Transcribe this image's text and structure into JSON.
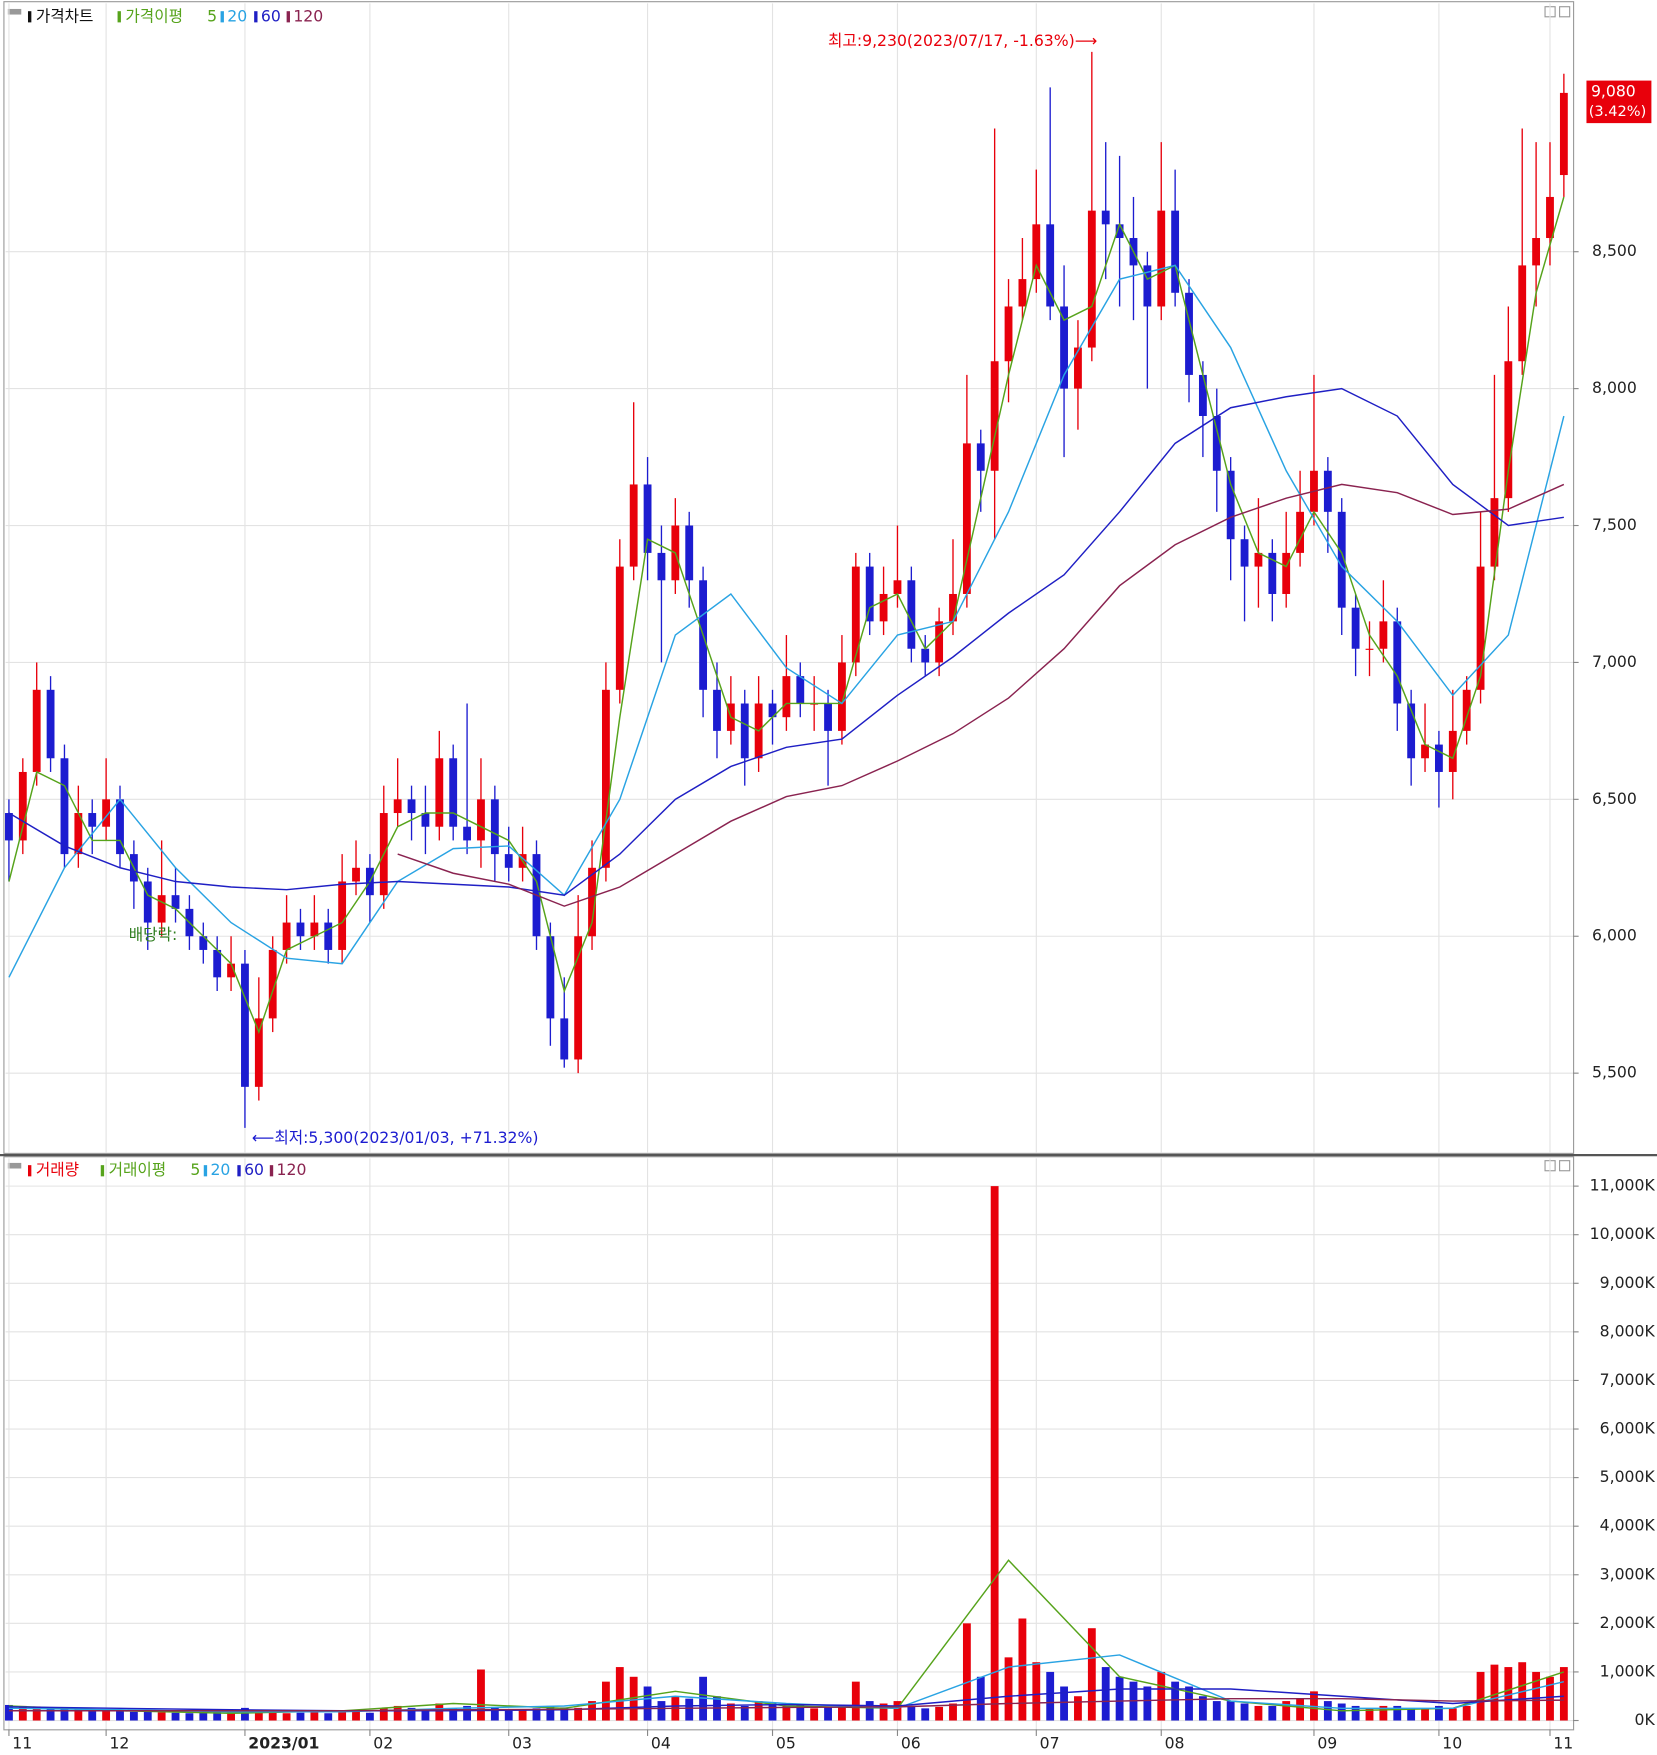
{
  "chart_data": [
    {
      "type": "candlestick",
      "title": "가격차트",
      "ma_title": "가격이평",
      "up_color": "#e8000b",
      "down_color": "#1c1cd0",
      "open": [
        6450,
        6350,
        6600,
        6900,
        6650,
        6300,
        6450,
        6400,
        6500,
        6300,
        6200,
        6050,
        6150,
        6100,
        6000,
        5950,
        5850,
        5900,
        5450,
        5700,
        5950,
        6050,
        6000,
        6050,
        5950,
        6200,
        6250,
        6150,
        6450,
        6500,
        6450,
        6400,
        6650,
        6400,
        6350,
        6500,
        6300,
        6250,
        6300,
        6000,
        5700,
        5550,
        6000,
        6250,
        6900,
        7350,
        7650,
        7400,
        7300,
        7500,
        7300,
        6900,
        6750,
        6850,
        6650,
        6850,
        6800,
        6950,
        6850,
        6850,
        6750,
        7000,
        7350,
        7150,
        7250,
        7300,
        7050,
        7000,
        7150,
        7250,
        7800,
        7700,
        8100,
        8300,
        8400,
        8600,
        8300,
        8000,
        8150,
        8650,
        8600,
        8550,
        8450,
        8300,
        8650,
        8350,
        8050,
        7900,
        7700,
        7450,
        7350,
        7400,
        7250,
        7400,
        7550,
        7700,
        7550,
        7200,
        7050,
        7050,
        7150,
        6850,
        6650,
        6700,
        6600,
        6750,
        6900,
        7350,
        7600,
        8100,
        8450,
        8550,
        8780
      ],
      "high": [
        6500,
        6650,
        7000,
        6950,
        6700,
        6550,
        6500,
        6650,
        6550,
        6350,
        6250,
        6350,
        6250,
        6150,
        6050,
        6000,
        6000,
        5950,
        5850,
        6000,
        6150,
        6100,
        6150,
        6100,
        6300,
        6350,
        6300,
        6550,
        6650,
        6550,
        6550,
        6750,
        6700,
        6850,
        6650,
        6550,
        6400,
        6400,
        6350,
        6050,
        5850,
        6150,
        6350,
        7000,
        7450,
        7950,
        7750,
        7500,
        7600,
        7550,
        7350,
        7000,
        6950,
        6900,
        6950,
        6900,
        7100,
        7000,
        6950,
        6900,
        7100,
        7400,
        7400,
        7350,
        7500,
        7350,
        7100,
        7200,
        7450,
        8050,
        7850,
        8950,
        8400,
        8550,
        8800,
        9100,
        8450,
        8250,
        9230,
        8900,
        8850,
        8700,
        8500,
        8900,
        8800,
        8400,
        8100,
        8000,
        7750,
        7500,
        7600,
        7450,
        7550,
        7700,
        8050,
        7750,
        7600,
        7250,
        7150,
        7300,
        7200,
        6900,
        6850,
        6750,
        6900,
        6950,
        7550,
        8050,
        8300,
        8950,
        8900,
        8900,
        9150
      ],
      "low": [
        6200,
        6300,
        6550,
        6600,
        6250,
        6250,
        6300,
        6350,
        6250,
        6100,
        5950,
        6000,
        6050,
        5950,
        5900,
        5800,
        5800,
        5300,
        5400,
        5650,
        5900,
        5950,
        5950,
        5900,
        5900,
        6150,
        6050,
        6100,
        6400,
        6350,
        6300,
        6350,
        6350,
        6300,
        6250,
        6200,
        6200,
        6200,
        5950,
        5600,
        5520,
        5500,
        5950,
        6200,
        6850,
        7300,
        7300,
        7000,
        7250,
        7200,
        6800,
        6650,
        6700,
        6550,
        6600,
        6700,
        6750,
        6800,
        6750,
        6550,
        6700,
        6950,
        7100,
        7100,
        7200,
        7000,
        6950,
        6950,
        7100,
        7200,
        7550,
        7450,
        7950,
        8250,
        8350,
        8250,
        7750,
        7850,
        8100,
        8400,
        8300,
        8250,
        8000,
        8250,
        8300,
        7950,
        7750,
        7550,
        7300,
        7150,
        7200,
        7150,
        7200,
        7350,
        7500,
        7400,
        7100,
        6950,
        6950,
        7000,
        6750,
        6550,
        6600,
        6470,
        6500,
        6700,
        6850,
        7300,
        7550,
        8050,
        8300,
        8450,
        8700
      ],
      "close": [
        6350,
        6600,
        6900,
        6650,
        6300,
        6450,
        6400,
        6500,
        6300,
        6200,
        6050,
        6150,
        6100,
        6000,
        5950,
        5850,
        5900,
        5450,
        5700,
        5950,
        6050,
        6000,
        6050,
        5950,
        6200,
        6250,
        6150,
        6450,
        6500,
        6450,
        6400,
        6650,
        6400,
        6350,
        6500,
        6300,
        6250,
        6300,
        6000,
        5700,
        5550,
        6000,
        6250,
        6900,
        7350,
        7650,
        7400,
        7300,
        7500,
        7300,
        6900,
        6750,
        6850,
        6650,
        6850,
        6800,
        6950,
        6850,
        6850,
        6750,
        7000,
        7350,
        7150,
        7250,
        7300,
        7050,
        7000,
        7150,
        7250,
        7800,
        7700,
        8100,
        8300,
        8400,
        8600,
        8300,
        8000,
        8150,
        8650,
        8600,
        8550,
        8450,
        8300,
        8650,
        8350,
        8050,
        7900,
        7700,
        7450,
        7350,
        7400,
        7250,
        7400,
        7550,
        7700,
        7550,
        7200,
        7050,
        7050,
        7150,
        6850,
        6650,
        6700,
        6600,
        6750,
        6900,
        7350,
        7600,
        8100,
        8450,
        8550,
        8700,
        9080
      ],
      "moving_averages": [
        {
          "name": "5",
          "color": "#56a31b",
          "x": [
            0,
            2,
            4,
            6,
            8,
            10,
            12,
            14,
            16,
            18,
            20,
            22,
            24,
            26,
            28,
            30,
            32,
            34,
            36,
            38,
            40,
            42,
            44,
            46,
            48,
            50,
            52,
            54,
            56,
            58,
            60,
            62,
            64,
            66,
            68,
            70,
            72,
            74,
            76,
            78,
            80,
            82,
            84,
            86,
            88,
            90,
            92,
            94,
            96,
            98,
            100,
            102,
            104,
            106,
            108,
            110,
            112
          ],
          "values": [
            6200,
            6600,
            6550,
            6350,
            6350,
            6150,
            6100,
            6000,
            5900,
            5650,
            5950,
            6000,
            6050,
            6200,
            6400,
            6450,
            6450,
            6400,
            6350,
            6200,
            5800,
            6050,
            6800,
            7450,
            7400,
            7100,
            6800,
            6750,
            6850,
            6850,
            6850,
            7200,
            7250,
            7050,
            7150,
            7600,
            8050,
            8450,
            8250,
            8300,
            8600,
            8400,
            8450,
            8050,
            7650,
            7400,
            7350,
            7550,
            7400,
            7100,
            6950,
            6700,
            6650,
            6950,
            7700,
            8350,
            8700
          ]
        },
        {
          "name": "20",
          "color": "#29a3e3",
          "x": [
            0,
            4,
            8,
            12,
            16,
            20,
            24,
            28,
            32,
            36,
            40,
            44,
            48,
            52,
            56,
            60,
            64,
            68,
            72,
            76,
            80,
            84,
            88,
            92,
            96,
            100,
            104,
            108,
            112
          ],
          "values": [
            5850,
            6250,
            6500,
            6250,
            6050,
            5920,
            5900,
            6200,
            6320,
            6330,
            6150,
            6500,
            7100,
            7250,
            6980,
            6850,
            7100,
            7150,
            7550,
            8050,
            8400,
            8450,
            8150,
            7700,
            7350,
            7150,
            6880,
            7100,
            7900
          ]
        },
        {
          "name": "60",
          "color": "#1f1fc4",
          "x": [
            0,
            4,
            8,
            12,
            16,
            20,
            24,
            28,
            32,
            36,
            40,
            44,
            48,
            52,
            56,
            60,
            64,
            68,
            72,
            76,
            80,
            84,
            88,
            92,
            96,
            100,
            104,
            108,
            112
          ],
          "values": [
            6450,
            6330,
            6250,
            6200,
            6180,
            6170,
            6190,
            6200,
            6190,
            6180,
            6150,
            6300,
            6500,
            6620,
            6690,
            6720,
            6880,
            7020,
            7180,
            7320,
            7550,
            7800,
            7930,
            7970,
            8000,
            7900,
            7650,
            7500,
            7530
          ]
        },
        {
          "name": "120",
          "color": "#8a2350",
          "x": [
            28,
            32,
            36,
            40,
            44,
            48,
            52,
            56,
            60,
            64,
            68,
            72,
            76,
            80,
            84,
            88,
            92,
            96,
            100,
            104,
            108,
            112
          ],
          "values": [
            6300,
            6230,
            6190,
            6110,
            6180,
            6300,
            6420,
            6510,
            6550,
            6640,
            6740,
            6870,
            7050,
            7280,
            7430,
            7530,
            7600,
            7650,
            7620,
            7540,
            7560,
            7650
          ]
        }
      ],
      "ylim": [
        5209,
        9407
      ],
      "yticks": [
        {
          "value": 5500,
          "label": "5,500"
        },
        {
          "value": 6000,
          "label": "6,000"
        },
        {
          "value": 6500,
          "label": "6,500"
        },
        {
          "value": 7000,
          "label": "7,000"
        },
        {
          "value": 7500,
          "label": "7,500"
        },
        {
          "value": 8000,
          "label": "8,000"
        },
        {
          "value": 8500,
          "label": "8,500"
        }
      ],
      "grid": true,
      "high_annotation": "최고:9,230(2023/07/17, -1.63%)⟶",
      "low_annotation": "⟵최저:5,300(2023/01/03, +71.32%)",
      "event_annotation": "배당락:",
      "last_label": "9,080",
      "last_change": "(3.42%)"
    },
    {
      "type": "bar",
      "title": "거래량",
      "ma_title": "거래이평",
      "values": [
        320,
        300,
        290,
        260,
        240,
        250,
        230,
        220,
        200,
        180,
        190,
        170,
        160,
        150,
        170,
        200,
        180,
        260,
        220,
        190,
        150,
        160,
        170,
        150,
        180,
        200,
        160,
        250,
        300,
        260,
        220,
        350,
        250,
        300,
        1050,
        280,
        200,
        220,
        250,
        300,
        270,
        260,
        400,
        800,
        1100,
        900,
        700,
        400,
        500,
        450,
        900,
        500,
        350,
        300,
        400,
        350,
        300,
        350,
        250,
        280,
        300,
        800,
        400,
        350,
        400,
        300,
        250,
        280,
        350,
        2000,
        900,
        11000,
        1300,
        2100,
        1200,
        1000,
        700,
        500,
        1900,
        1100,
        900,
        800,
        700,
        1000,
        800,
        700,
        500,
        400,
        400,
        350,
        300,
        300,
        400,
        450,
        600,
        400,
        350,
        300,
        250,
        300,
        300,
        250,
        250,
        300,
        250,
        300,
        1000,
        1150,
        1100,
        1200,
        1000,
        900,
        1100
      ],
      "moving_averages": [
        {
          "name": "5",
          "color": "#56a31b",
          "x": [
            0,
            8,
            16,
            24,
            32,
            40,
            48,
            56,
            64,
            72,
            80,
            88,
            96,
            104,
            112
          ],
          "values": [
            300,
            200,
            150,
            200,
            350,
            250,
            600,
            300,
            250,
            3300,
            900,
            400,
            200,
            250,
            1000
          ]
        },
        {
          "name": "20",
          "color": "#29a3e3",
          "x": [
            0,
            8,
            16,
            24,
            32,
            40,
            48,
            56,
            64,
            72,
            80,
            88,
            96,
            104,
            112
          ],
          "values": [
            250,
            220,
            180,
            180,
            250,
            300,
            500,
            350,
            250,
            1100,
            1350,
            400,
            250,
            250,
            800
          ]
        },
        {
          "name": "60",
          "color": "#1f1fc4",
          "x": [
            0,
            8,
            16,
            24,
            32,
            40,
            48,
            56,
            64,
            72,
            80,
            88,
            96,
            104,
            112
          ],
          "values": [
            280,
            250,
            220,
            200,
            200,
            220,
            300,
            330,
            300,
            500,
            650,
            650,
            500,
            350,
            500
          ]
        },
        {
          "name": "120",
          "color": "#8a2350",
          "x": [
            0,
            8,
            16,
            24,
            32,
            40,
            48,
            56,
            64,
            72,
            80,
            88,
            96,
            104,
            112
          ],
          "values": [
            200,
            200,
            200,
            200,
            220,
            230,
            250,
            270,
            280,
            350,
            400,
            450,
            450,
            400,
            420
          ]
        }
      ],
      "ylim": [
        -180,
        11570
      ],
      "yticks": [
        {
          "value": 0,
          "label": "0K"
        },
        {
          "value": 1000,
          "label": "1,000K"
        },
        {
          "value": 2000,
          "label": "2,000K"
        },
        {
          "value": 3000,
          "label": "3,000K"
        },
        {
          "value": 4000,
          "label": "4,000K"
        },
        {
          "value": 5000,
          "label": "5,000K"
        },
        {
          "value": 6000,
          "label": "6,000K"
        },
        {
          "value": 7000,
          "label": "7,000K"
        },
        {
          "value": 8000,
          "label": "8,000K"
        },
        {
          "value": 9000,
          "label": "9,000K"
        },
        {
          "value": 10000,
          "label": "10,000K"
        },
        {
          "value": 11000,
          "label": "11,000K"
        }
      ],
      "xlim": [
        -0.24,
        112.66
      ],
      "xticks": [
        {
          "value": 0,
          "label": "11"
        },
        {
          "value": 7,
          "label": "12"
        },
        {
          "value": 17,
          "label": "2023/01"
        },
        {
          "value": 26,
          "label": "02"
        },
        {
          "value": 36,
          "label": "03"
        },
        {
          "value": 46,
          "label": "04"
        },
        {
          "value": 55,
          "label": "05"
        },
        {
          "value": 64,
          "label": "06"
        },
        {
          "value": 74,
          "label": "07"
        },
        {
          "value": 83,
          "label": "08"
        },
        {
          "value": 94,
          "label": "09"
        },
        {
          "value": 103,
          "label": "10"
        },
        {
          "value": 111,
          "label": "11"
        }
      ],
      "grid": true
    }
  ]
}
